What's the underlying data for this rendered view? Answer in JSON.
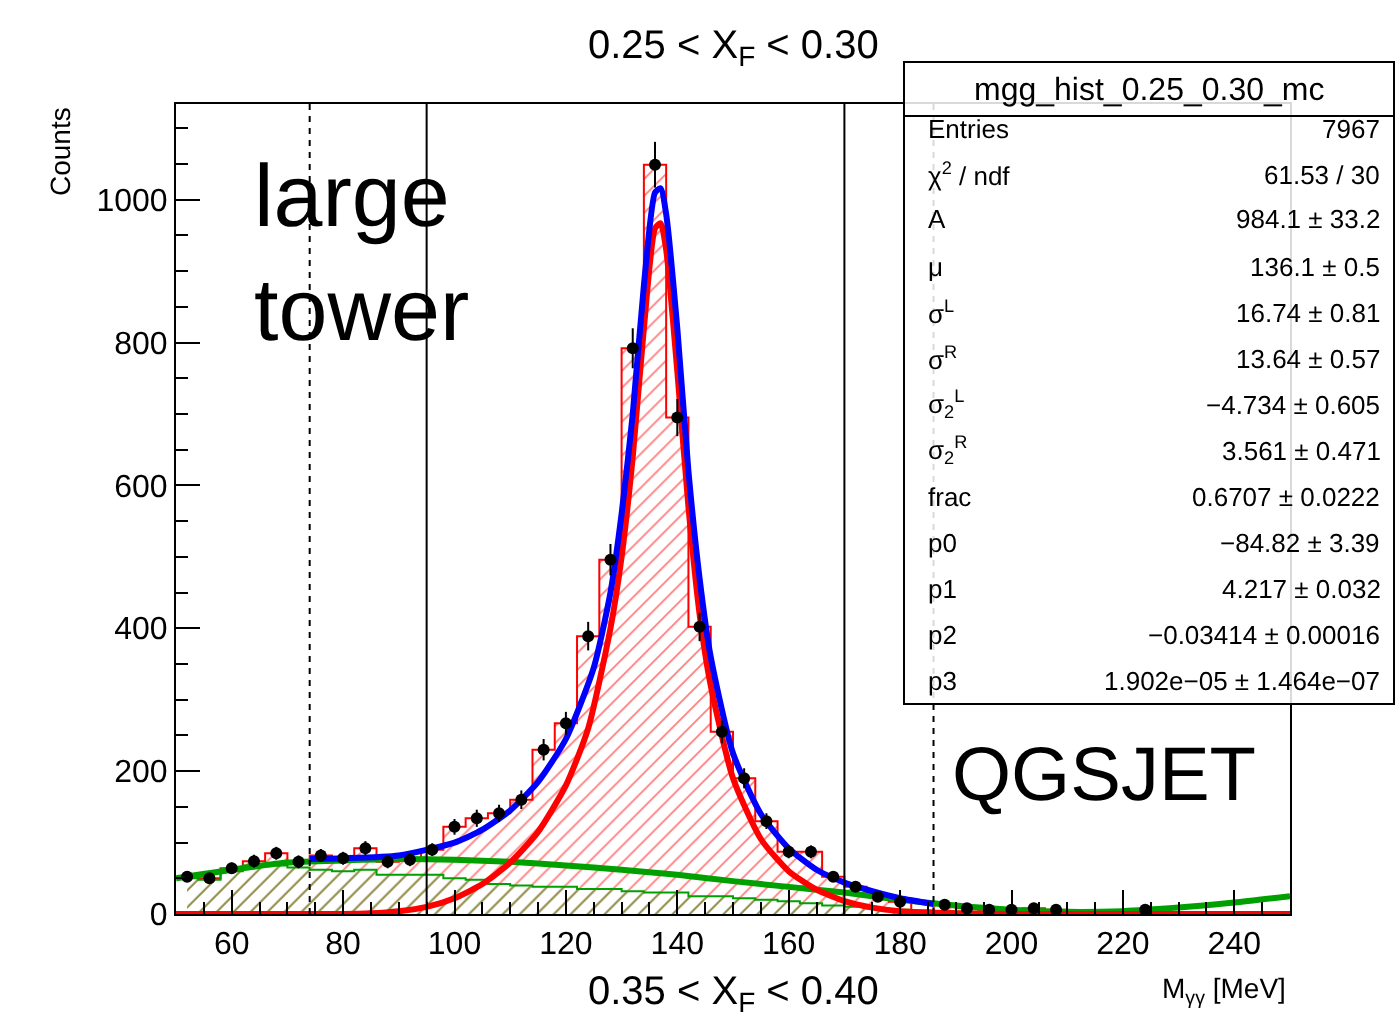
{
  "chart_data": {
    "type": "area",
    "title": "0.25 < X$_{F}$ < 0.30",
    "xlabel": "M$_{γγ}$ [MeV]",
    "ylabel": "Counts",
    "xlim": [
      50,
      250
    ],
    "xticks": [
      60,
      80,
      100,
      120,
      140,
      160,
      180,
      200,
      220,
      240
    ],
    "ylim": [
      0,
      1134
    ],
    "yticks": [
      0,
      200,
      400,
      600,
      800,
      1000
    ],
    "series": [
      {
        "marker": "none",
        "color": "#ff0000",
        "x": [
          52,
          56,
          60,
          64,
          68,
          72,
          76,
          80,
          84,
          88,
          92,
          96,
          100,
          104,
          108,
          112,
          116,
          120,
          124,
          128,
          132,
          136,
          140,
          144,
          148,
          152,
          156,
          160,
          164,
          168,
          172,
          176,
          180,
          184,
          188,
          192,
          196,
          200,
          204,
          208,
          212,
          216,
          220,
          224,
          228,
          232,
          236,
          240,
          244,
          248
        ],
        "values": [
          52,
          50,
          64,
          74,
          85,
          73,
          82,
          78,
          92,
          73,
          76,
          90,
          122,
          134,
          141,
          160,
          230,
          267,
          389,
          496,
          792,
          1049,
          695,
          402,
          255,
          190,
          130,
          87,
          87,
          52,
          38,
          24,
          17,
          2,
          13,
          8,
          6,
          6,
          8,
          6,
          0,
          0,
          0,
          6,
          0,
          0,
          0,
          0,
          0,
          0
        ]
      },
      {
        "type": "area",
        "marker": "none",
        "color": "#00a000",
        "x": [
          52,
          56,
          60,
          64,
          68,
          72,
          76,
          80,
          84,
          88,
          92,
          96,
          100,
          104,
          108,
          112,
          116,
          120,
          124,
          128,
          132,
          136,
          140,
          144,
          148,
          152,
          156,
          160,
          164,
          168,
          172,
          176,
          180,
          184,
          188,
          192,
          196,
          200,
          204,
          208,
          212,
          216,
          220,
          224,
          228,
          232,
          236,
          240,
          244,
          248
        ],
        "values": [
          50,
          48,
          60,
          68,
          68,
          65,
          62,
          60,
          62,
          55,
          55,
          55,
          50,
          48,
          42,
          40,
          38,
          38,
          35,
          35,
          32,
          30,
          30,
          25,
          25,
          22,
          20,
          18,
          15,
          12,
          10,
          8,
          6,
          5,
          4,
          3,
          2,
          1,
          0,
          0,
          0,
          0,
          0,
          0,
          0,
          0,
          0,
          0,
          0,
          0
        ]
      },
      {
        "type": "line",
        "marker": "none",
        "color": "#00a000",
        "x": [
          50,
          60,
          70,
          80,
          90,
          100,
          110,
          120,
          130,
          140,
          150,
          160,
          170,
          180,
          190,
          200,
          210,
          220,
          230,
          240,
          250
        ],
        "values": [
          50,
          62,
          72,
          75,
          77,
          76,
          73,
          68,
          62,
          55,
          46,
          38,
          30,
          20,
          12,
          6,
          3,
          4,
          9,
          16,
          25
        ]
      },
      {
        "type": "line",
        "marker": "none",
        "color": "#ff0000",
        "x": [
          50,
          80,
          85,
          90,
          95,
          100,
          105,
          110,
          115,
          120,
          124,
          128,
          130,
          132,
          134,
          136,
          137,
          138,
          140,
          142,
          144,
          146,
          150,
          155,
          160,
          165,
          170,
          175,
          180,
          190,
          200,
          250
        ],
        "values": [
          0,
          0,
          1,
          4,
          10,
          22,
          42,
          72,
          115,
          180,
          260,
          400,
          500,
          640,
          820,
          960,
          967,
          930,
          760,
          570,
          420,
          320,
          190,
          105,
          60,
          34,
          18,
          9,
          4,
          1,
          0,
          0
        ]
      },
      {
        "type": "line",
        "marker": "none",
        "color": "#0000ff",
        "x": [
          74,
          80,
          90,
          100,
          105,
          110,
          115,
          120,
          125,
          128,
          130,
          132,
          134,
          136,
          137,
          138,
          140,
          142,
          144,
          146,
          150,
          155,
          160,
          165,
          170,
          175,
          180,
          186
        ],
        "values": [
          77,
          78,
          82,
          100,
          118,
          145,
          185,
          245,
          345,
          450,
          560,
          700,
          880,
          1010,
          1016,
          980,
          820,
          620,
          470,
          360,
          225,
          140,
          92,
          62,
          44,
          32,
          22,
          14
        ]
      },
      {
        "type": "scatter",
        "marker": "circle",
        "color": "#000000",
        "x": [
          52,
          56,
          60,
          64,
          68,
          72,
          76,
          80,
          84,
          88,
          92,
          96,
          100,
          104,
          108,
          112,
          116,
          120,
          124,
          128,
          132,
          136,
          140,
          144,
          148,
          152,
          156,
          160,
          164,
          168,
          172,
          176,
          180,
          184,
          188,
          192,
          196,
          200,
          204,
          208,
          212,
          216,
          220,
          224
        ],
        "values": [
          52,
          50,
          64,
          74,
          85,
          73,
          82,
          78,
          92,
          73,
          76,
          90,
          122,
          134,
          141,
          160,
          230,
          267,
          389,
          496,
          792,
          1049,
          695,
          402,
          255,
          190,
          130,
          87,
          87,
          52,
          38,
          24,
          17,
          null,
          13,
          8,
          6,
          6,
          8,
          6,
          null,
          null,
          null,
          6
        ],
        "errors": [
          7,
          7,
          8,
          9,
          9,
          9,
          9,
          9,
          10,
          9,
          9,
          9,
          11,
          12,
          12,
          13,
          15,
          16,
          20,
          22,
          28,
          32,
          26,
          20,
          16,
          14,
          11,
          9,
          9,
          7,
          6,
          5,
          4,
          null,
          4,
          3,
          2,
          2,
          3,
          2,
          null,
          null,
          null,
          2
        ]
      }
    ],
    "ref_lines": [
      {
        "axis": "x",
        "value": 74,
        "color": "#000000",
        "line_style": "dotted"
      },
      {
        "axis": "x",
        "value": 95,
        "color": "#000000",
        "line_style": "solid"
      },
      {
        "axis": "x",
        "value": 170,
        "color": "#000000",
        "line_style": "solid"
      },
      {
        "axis": "x",
        "value": 186,
        "color": "#000000",
        "line_style": "dotted"
      }
    ],
    "annotations": [
      "large\ntower",
      "QGSJET",
      "0.35 < X$_{F}$ < 0.40",
      "mgg_hist_0.25_0.30_mc",
      "Entries",
      "7967",
      "χ$^{2}$ / ndf",
      "61.53 / 30",
      "A",
      "984.1 ± 33.2",
      "μ",
      "136.1 ± 0.5",
      "σ$^{L}$",
      "16.74 ± 0.81",
      "σ$^{R}$",
      "13.64 ± 0.57",
      "σ$_{2}$$^{L}$",
      "−4.734 ± 0.605",
      "σ$_{2}$$^{R}$",
      "3.561 ± 0.471",
      "frac",
      "0.6707 ± 0.0222",
      "p0",
      "−84.82 ± 3.39",
      "p1",
      "4.217 ± 0.032",
      "p2",
      "−0.03414 ± 0.00016",
      "p3",
      "1.902e−05 ± 1.464e−07"
    ]
  }
}
